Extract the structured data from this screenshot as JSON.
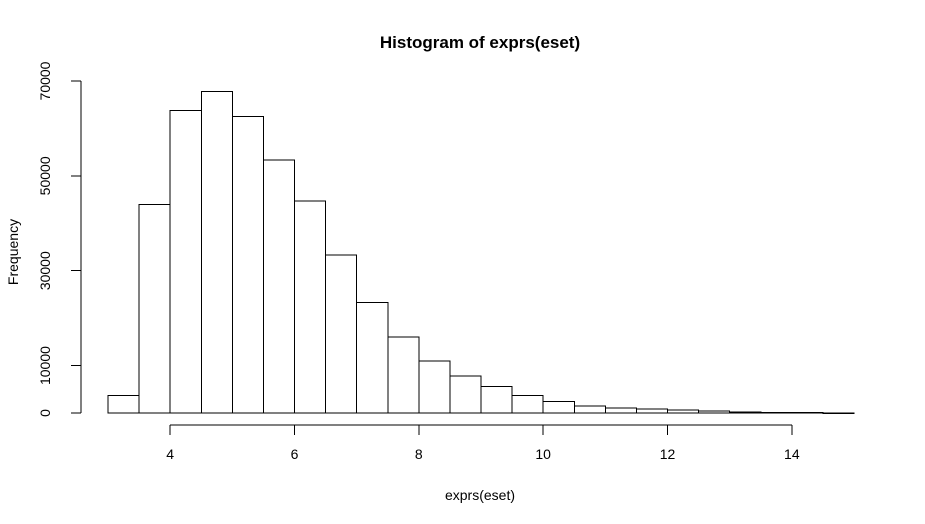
{
  "chart_data": {
    "type": "bar",
    "title": "Histogram of exprs(eset)",
    "xlabel": "exprs(eset)",
    "ylabel": "Frequency",
    "x_ticks": [
      4,
      6,
      8,
      10,
      12,
      14
    ],
    "y_ticks": [
      0,
      10000,
      30000,
      50000,
      70000
    ],
    "xlim": [
      3,
      15
    ],
    "ylim": [
      0,
      70000
    ],
    "bin_width": 0.5,
    "categories": [
      "3.0-3.5",
      "3.5-4.0",
      "4.0-4.5",
      "4.5-5.0",
      "5.0-5.5",
      "5.5-6.0",
      "6.0-6.5",
      "6.5-7.0",
      "7.0-7.5",
      "7.5-8.0",
      "8.0-8.5",
      "8.5-9.0",
      "9.0-9.5",
      "9.5-10.0",
      "10.0-10.5",
      "10.5-11.0",
      "11.0-11.5",
      "11.5-12.0",
      "12.0-12.5",
      "12.5-13.0",
      "13.0-13.5",
      "13.5-14.0",
      "14.0-14.5",
      "14.5-15.0"
    ],
    "bin_starts": [
      3.0,
      3.5,
      4.0,
      4.5,
      5.0,
      5.5,
      6.0,
      6.5,
      7.0,
      7.5,
      8.0,
      8.5,
      9.0,
      9.5,
      10.0,
      10.5,
      11.0,
      11.5,
      12.0,
      12.5,
      13.0,
      13.5,
      14.0,
      14.5
    ],
    "values": [
      3700,
      44000,
      63800,
      67800,
      62500,
      53300,
      44700,
      33300,
      23300,
      16000,
      11000,
      7800,
      5600,
      3700,
      2400,
      1500,
      1100,
      800,
      600,
      400,
      250,
      150,
      80,
      40
    ],
    "grid": false,
    "legend": "none"
  }
}
